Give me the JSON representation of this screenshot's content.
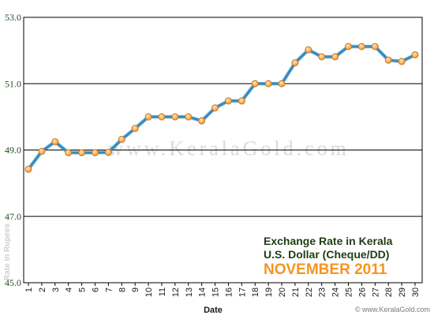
{
  "chart_data": {
    "type": "line",
    "title": "Exchange Rate in Kerala",
    "subtitle": "U.S. Dollar (Cheque/DD)",
    "period": "NOVEMBER 2011",
    "xlabel": "Date",
    "ylabel": "Rate in Rupees",
    "ylim": [
      45.0,
      53.0
    ],
    "y_ticks": [
      "45.0",
      "47.0",
      "49.0",
      "51.0",
      "53.0"
    ],
    "grid": true,
    "legend": "bottom-right",
    "watermark": "www.KeralaGold.com",
    "credit": "© www.KeralaGold.com",
    "colors": {
      "line": "#2e8fc4",
      "marker_fill": "#f7a84a",
      "marker_stroke": "#c7771f",
      "grid": "#000000"
    },
    "x": [
      1,
      2,
      3,
      4,
      5,
      6,
      7,
      8,
      9,
      10,
      11,
      12,
      13,
      14,
      15,
      16,
      17,
      18,
      19,
      20,
      21,
      22,
      23,
      24,
      25,
      26,
      27,
      28,
      29,
      30
    ],
    "series": [
      {
        "values": [
          48.42,
          48.96,
          49.25,
          48.92,
          48.92,
          48.92,
          48.93,
          49.32,
          49.65,
          50.0,
          50.0,
          50.0,
          50.0,
          49.88,
          50.27,
          50.48,
          50.48,
          51.0,
          51.0,
          51.0,
          51.63,
          52.02,
          51.81,
          51.81,
          52.12,
          52.12,
          52.12,
          51.71,
          51.67,
          51.87
        ]
      }
    ]
  }
}
